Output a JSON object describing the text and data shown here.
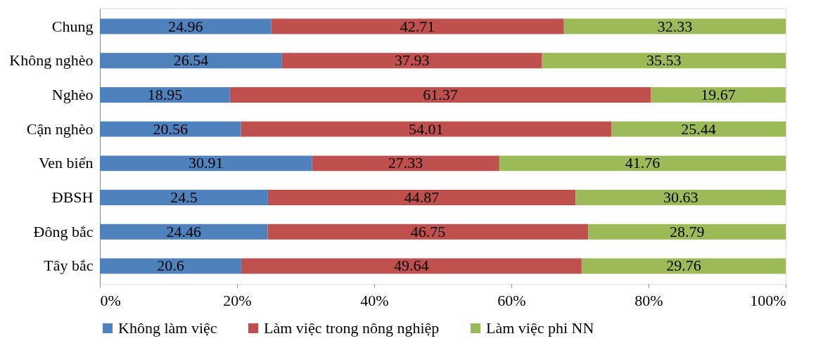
{
  "chart_data": {
    "type": "bar",
    "orientation": "horizontal",
    "stacked": true,
    "data_labels": true,
    "legend": "bottom",
    "grid": false,
    "categories": [
      "Chung",
      "Không nghèo",
      "Nghèo",
      "Cận nghèo",
      "Ven biển",
      "ĐBSH",
      "Đông bắc",
      "Tây bắc"
    ],
    "series": [
      {
        "name": "Không làm việc",
        "color": "#4f81bd",
        "values": [
          24.96,
          26.54,
          18.95,
          20.56,
          30.91,
          24.5,
          24.46,
          20.6
        ]
      },
      {
        "name": "Làm việc trong nông nghiệp",
        "color": "#c0504d",
        "values": [
          42.71,
          37.93,
          61.37,
          54.01,
          27.33,
          44.87,
          46.75,
          49.64
        ]
      },
      {
        "name": "Làm việc phi NN",
        "color": "#9bbb59",
        "values": [
          32.33,
          35.53,
          19.67,
          25.44,
          41.76,
          30.63,
          28.79,
          29.76
        ]
      }
    ],
    "xlim": [
      0,
      100
    ],
    "xticks": [
      {
        "value": 0,
        "label": "0%"
      },
      {
        "value": 20,
        "label": "20%"
      },
      {
        "value": 40,
        "label": "40%"
      },
      {
        "value": 60,
        "label": "60%"
      },
      {
        "value": 80,
        "label": "80%"
      },
      {
        "value": 100,
        "label": "100%"
      }
    ]
  }
}
